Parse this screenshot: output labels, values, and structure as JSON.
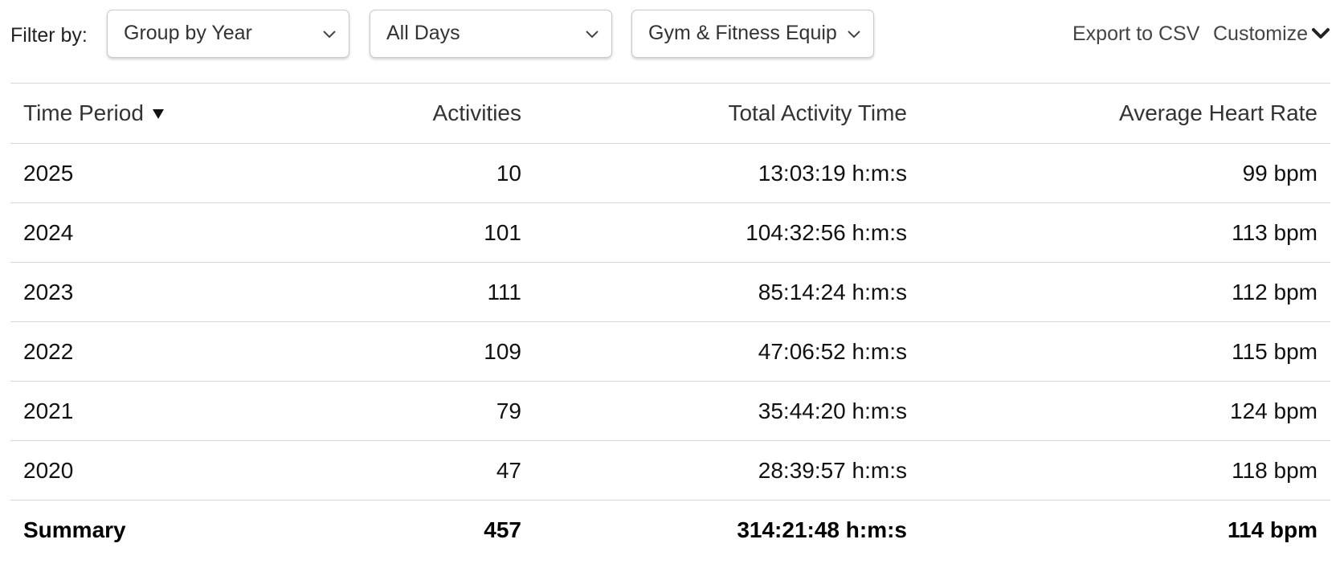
{
  "toolbar": {
    "filter_label": "Filter by:",
    "group_select": {
      "value": "Group by Year"
    },
    "days_select": {
      "value": "All Days"
    },
    "equipment_select": {
      "value": "Gym & Fitness Equipment"
    },
    "export_label": "Export to CSV",
    "customize_label": "Customize"
  },
  "icons": {
    "select_chevron": "chevron-down-icon",
    "customize_chevron": "chevron-down-bold-icon",
    "sort_indicator": "sort-descending-icon"
  },
  "table": {
    "headers": {
      "period": "Time Period",
      "activities": "Activities",
      "time": "Total Activity Time",
      "heart_rate": "Average Heart Rate"
    },
    "rows": [
      {
        "period": "2025",
        "activities": "10",
        "time": "13:03:19 h:m:s",
        "heart_rate": "99 bpm"
      },
      {
        "period": "2024",
        "activities": "101",
        "time": "104:32:56 h:m:s",
        "heart_rate": "113 bpm"
      },
      {
        "period": "2023",
        "activities": "111",
        "time": "85:14:24 h:m:s",
        "heart_rate": "112 bpm"
      },
      {
        "period": "2022",
        "activities": "109",
        "time": "47:06:52 h:m:s",
        "heart_rate": "115 bpm"
      },
      {
        "period": "2021",
        "activities": "79",
        "time": "35:44:20 h:m:s",
        "heart_rate": "124 bpm"
      },
      {
        "period": "2020",
        "activities": "47",
        "time": "28:39:57 h:m:s",
        "heart_rate": "118 bpm"
      }
    ],
    "summary": {
      "period": "Summary",
      "activities": "457",
      "time": "314:21:48 h:m:s",
      "heart_rate": "114 bpm"
    }
  },
  "colors": {
    "border": "#d6d6d6",
    "text": "#111111",
    "link": "#444444"
  }
}
